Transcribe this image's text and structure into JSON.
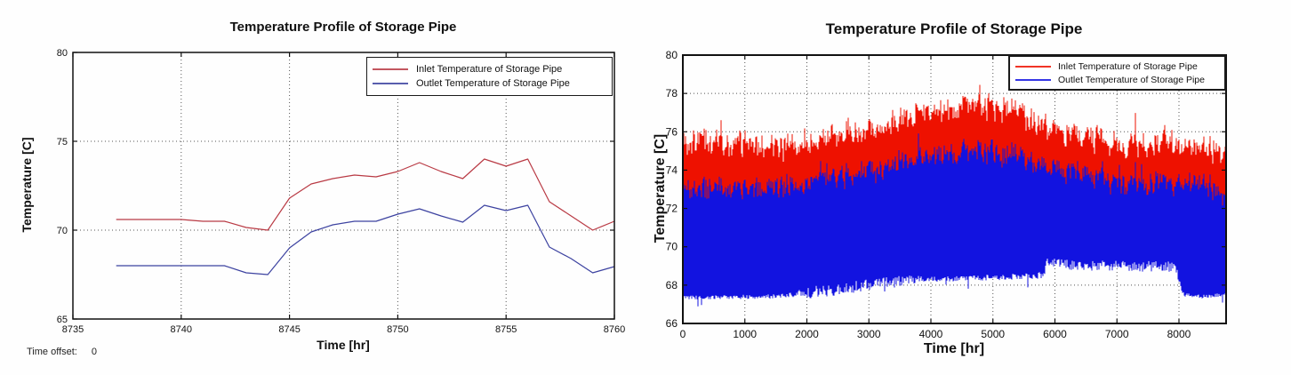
{
  "legend": {
    "inlet_label": "Inlet Temperature of Storage Pipe",
    "outlet_label": "Outlet Temperature of Storage Pipe"
  },
  "colors": {
    "inlet_left": "#b93a44",
    "outlet_left": "#3c42a0",
    "inlet_right": "#ee1100",
    "outlet_right": "#1213e0",
    "grid": "#555555",
    "axis": "#111111"
  },
  "chart_data": [
    {
      "id": "left",
      "type": "line",
      "title": "Temperature Profile of Storage Pipe",
      "xlabel": "Time [hr]",
      "ylabel": "Temperature [C]",
      "xlim": [
        8735,
        8760
      ],
      "ylim": [
        65,
        80
      ],
      "xticks": [
        8735,
        8740,
        8745,
        8750,
        8755,
        8760
      ],
      "yticks": [
        65,
        70,
        75,
        80
      ],
      "grid": true,
      "legend_position": "top-right",
      "time_offset_label": "Time offset:",
      "time_offset_value": "0",
      "x": [
        8737,
        8738,
        8739,
        8740,
        8741,
        8742,
        8743,
        8744,
        8745,
        8746,
        8747,
        8748,
        8749,
        8750,
        8751,
        8752,
        8753,
        8754,
        8755,
        8756,
        8757,
        8758,
        8759,
        8760
      ],
      "series": [
        {
          "name": "Inlet Temperature of Storage Pipe",
          "color_key": "inlet_left",
          "values": [
            70.6,
            70.6,
            70.6,
            70.6,
            70.5,
            70.5,
            70.15,
            70.0,
            71.8,
            72.6,
            72.9,
            73.1,
            73.0,
            73.3,
            73.8,
            73.3,
            72.9,
            74.0,
            73.6,
            74.0,
            71.6,
            70.8,
            70.0,
            70.5
          ]
        },
        {
          "name": "Outlet Temperature of Storage Pipe",
          "color_key": "outlet_left",
          "values": [
            68.0,
            68.0,
            68.0,
            68.0,
            68.0,
            68.0,
            67.6,
            67.5,
            69.0,
            69.9,
            70.3,
            70.5,
            70.5,
            70.9,
            71.2,
            70.8,
            70.45,
            71.4,
            71.1,
            71.4,
            69.05,
            68.4,
            67.6,
            67.95
          ]
        }
      ]
    },
    {
      "id": "right",
      "type": "noisy_band",
      "title": "Temperature Profile of Storage Pipe",
      "xlabel": "Time [hr]",
      "ylabel": "Temperature [C]",
      "xlim": [
        0,
        8760
      ],
      "ylim": [
        66,
        80
      ],
      "xticks": [
        0,
        1000,
        2000,
        3000,
        4000,
        5000,
        6000,
        7000,
        8000
      ],
      "yticks": [
        66,
        68,
        70,
        72,
        74,
        76,
        78,
        80
      ],
      "grid": true,
      "legend_position": "top-right",
      "series": [
        {
          "name": "Inlet Temperature of Storage Pipe",
          "color_key": "inlet_right",
          "top_envelope": [
            [
              0,
              75.2
            ],
            [
              300,
              75.4
            ],
            [
              1000,
              75.3
            ],
            [
              1500,
              75.2
            ],
            [
              2000,
              75.3
            ],
            [
              2500,
              75.7
            ],
            [
              3000,
              76.1
            ],
            [
              3500,
              76.5
            ],
            [
              4000,
              76.9
            ],
            [
              4500,
              77.2
            ],
            [
              4800,
              77.4
            ],
            [
              5100,
              77.2
            ],
            [
              5500,
              76.8
            ],
            [
              6000,
              76.2
            ],
            [
              6500,
              75.7
            ],
            [
              7000,
              75.3
            ],
            [
              7500,
              75.4
            ],
            [
              8000,
              75.3
            ],
            [
              8300,
              75.0
            ],
            [
              8760,
              75.1
            ]
          ],
          "bottom": 71.2
        },
        {
          "name": "Outlet Temperature of Storage Pipe",
          "color_key": "outlet_right",
          "top_envelope": [
            [
              0,
              72.9
            ],
            [
              1000,
              73.0
            ],
            [
              1800,
              73.1
            ],
            [
              2300,
              73.5
            ],
            [
              3000,
              73.9
            ],
            [
              3500,
              74.3
            ],
            [
              4000,
              74.6
            ],
            [
              4600,
              74.9
            ],
            [
              4900,
              75.0
            ],
            [
              5300,
              74.7
            ],
            [
              5800,
              74.3
            ],
            [
              6200,
              74.0
            ],
            [
              6800,
              73.5
            ],
            [
              7300,
              73.3
            ],
            [
              7800,
              73.4
            ],
            [
              8200,
              73.2
            ],
            [
              8760,
              73.0
            ]
          ],
          "bottom_envelope": [
            [
              0,
              67.35
            ],
            [
              1500,
              67.4
            ],
            [
              1900,
              67.55
            ],
            [
              2400,
              67.75
            ],
            [
              3000,
              68.0
            ],
            [
              3400,
              68.15
            ],
            [
              3700,
              68.3
            ],
            [
              4500,
              68.35
            ],
            [
              5000,
              68.4
            ],
            [
              5800,
              68.5
            ],
            [
              5880,
              69.2
            ],
            [
              6300,
              69.05
            ],
            [
              7000,
              69.0
            ],
            [
              7950,
              68.95
            ],
            [
              8050,
              67.5
            ],
            [
              8400,
              67.4
            ],
            [
              8760,
              67.5
            ]
          ],
          "bottom_jitter": [
            [
              0,
              0.1
            ],
            [
              1700,
              0.12
            ],
            [
              2100,
              0.32
            ],
            [
              3500,
              0.3
            ],
            [
              3900,
              0.15
            ],
            [
              5600,
              0.15
            ],
            [
              5950,
              0.28
            ],
            [
              7950,
              0.28
            ],
            [
              8100,
              0.1
            ],
            [
              8760,
              0.1
            ]
          ]
        }
      ]
    }
  ]
}
